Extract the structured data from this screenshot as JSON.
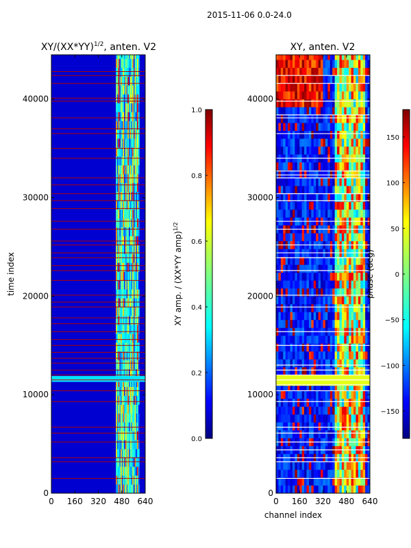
{
  "figure_title": "2015-11-06 0.0-24.0",
  "chart_data": [
    {
      "type": "heatmap",
      "title": "XY/(XX*YY)",
      "title_exponent": "1/2",
      "title_suffix": ", anten. V2",
      "xlabel": "",
      "ylabel": "time index",
      "xlim": [
        0,
        640
      ],
      "ylim": [
        0,
        44500
      ],
      "xticks": [
        0,
        160,
        320,
        480,
        640
      ],
      "yticks": [
        0,
        10000,
        20000,
        30000,
        40000
      ],
      "colormap": "jet",
      "background_value": 0.08,
      "bright_band_channels": [
        440,
        600
      ],
      "bright_band_levels": [
        0.55,
        0.35,
        0.65,
        0.3,
        0.5,
        0.4,
        0.6,
        0.3
      ],
      "red_row_lines": [
        1500,
        3200,
        3600,
        5200,
        6100,
        6700,
        9300,
        10400,
        11500,
        12000,
        12500,
        13200,
        13700,
        14300,
        15000,
        15600,
        16400,
        17200,
        17800,
        18900,
        19400,
        20100,
        21600,
        22600,
        23100,
        23900,
        24400,
        25200,
        25600,
        26800,
        27600,
        28900,
        29700,
        30400,
        31300,
        32000,
        34000,
        35000,
        36500,
        37000,
        38100,
        39800,
        40100,
        41600,
        42400,
        42800
      ],
      "colorbar": {
        "min": 0.0,
        "max": 1.0,
        "ticks": [
          "0.0",
          "0.2",
          "0.4",
          "0.6",
          "0.8",
          "1.0"
        ],
        "label": "XY amp. / (XX*YY amp)",
        "label_exponent": "1/2"
      }
    },
    {
      "type": "heatmap",
      "title": "XY, anten. V2",
      "xlabel": "channel index",
      "ylabel": "",
      "xlim": [
        0,
        640
      ],
      "ylim": [
        0,
        44500
      ],
      "xticks": [
        0,
        160,
        320,
        480,
        640
      ],
      "yticks": [
        0,
        10000,
        20000,
        30000,
        40000
      ],
      "colormap": "jet",
      "white_row_lines": [
        1500,
        3200,
        3600,
        4400,
        5200,
        6100,
        6700,
        9300,
        10400,
        11000,
        11500,
        12000,
        12500,
        13000,
        15000,
        16400,
        18900,
        20100,
        22600,
        23900,
        24400,
        25200,
        26800,
        27600,
        29700,
        30400,
        32000,
        32300,
        32700,
        34000,
        36500,
        38100,
        38400,
        39800,
        41600,
        42400
      ],
      "colorbar": {
        "min": -180,
        "max": 180,
        "ticks": [
          "−150",
          "−100",
          "−50",
          "0",
          "50",
          "100",
          "150"
        ],
        "tick_values": [
          -150,
          -100,
          -50,
          0,
          50,
          100,
          150
        ],
        "label": "phase (deg)"
      }
    }
  ]
}
